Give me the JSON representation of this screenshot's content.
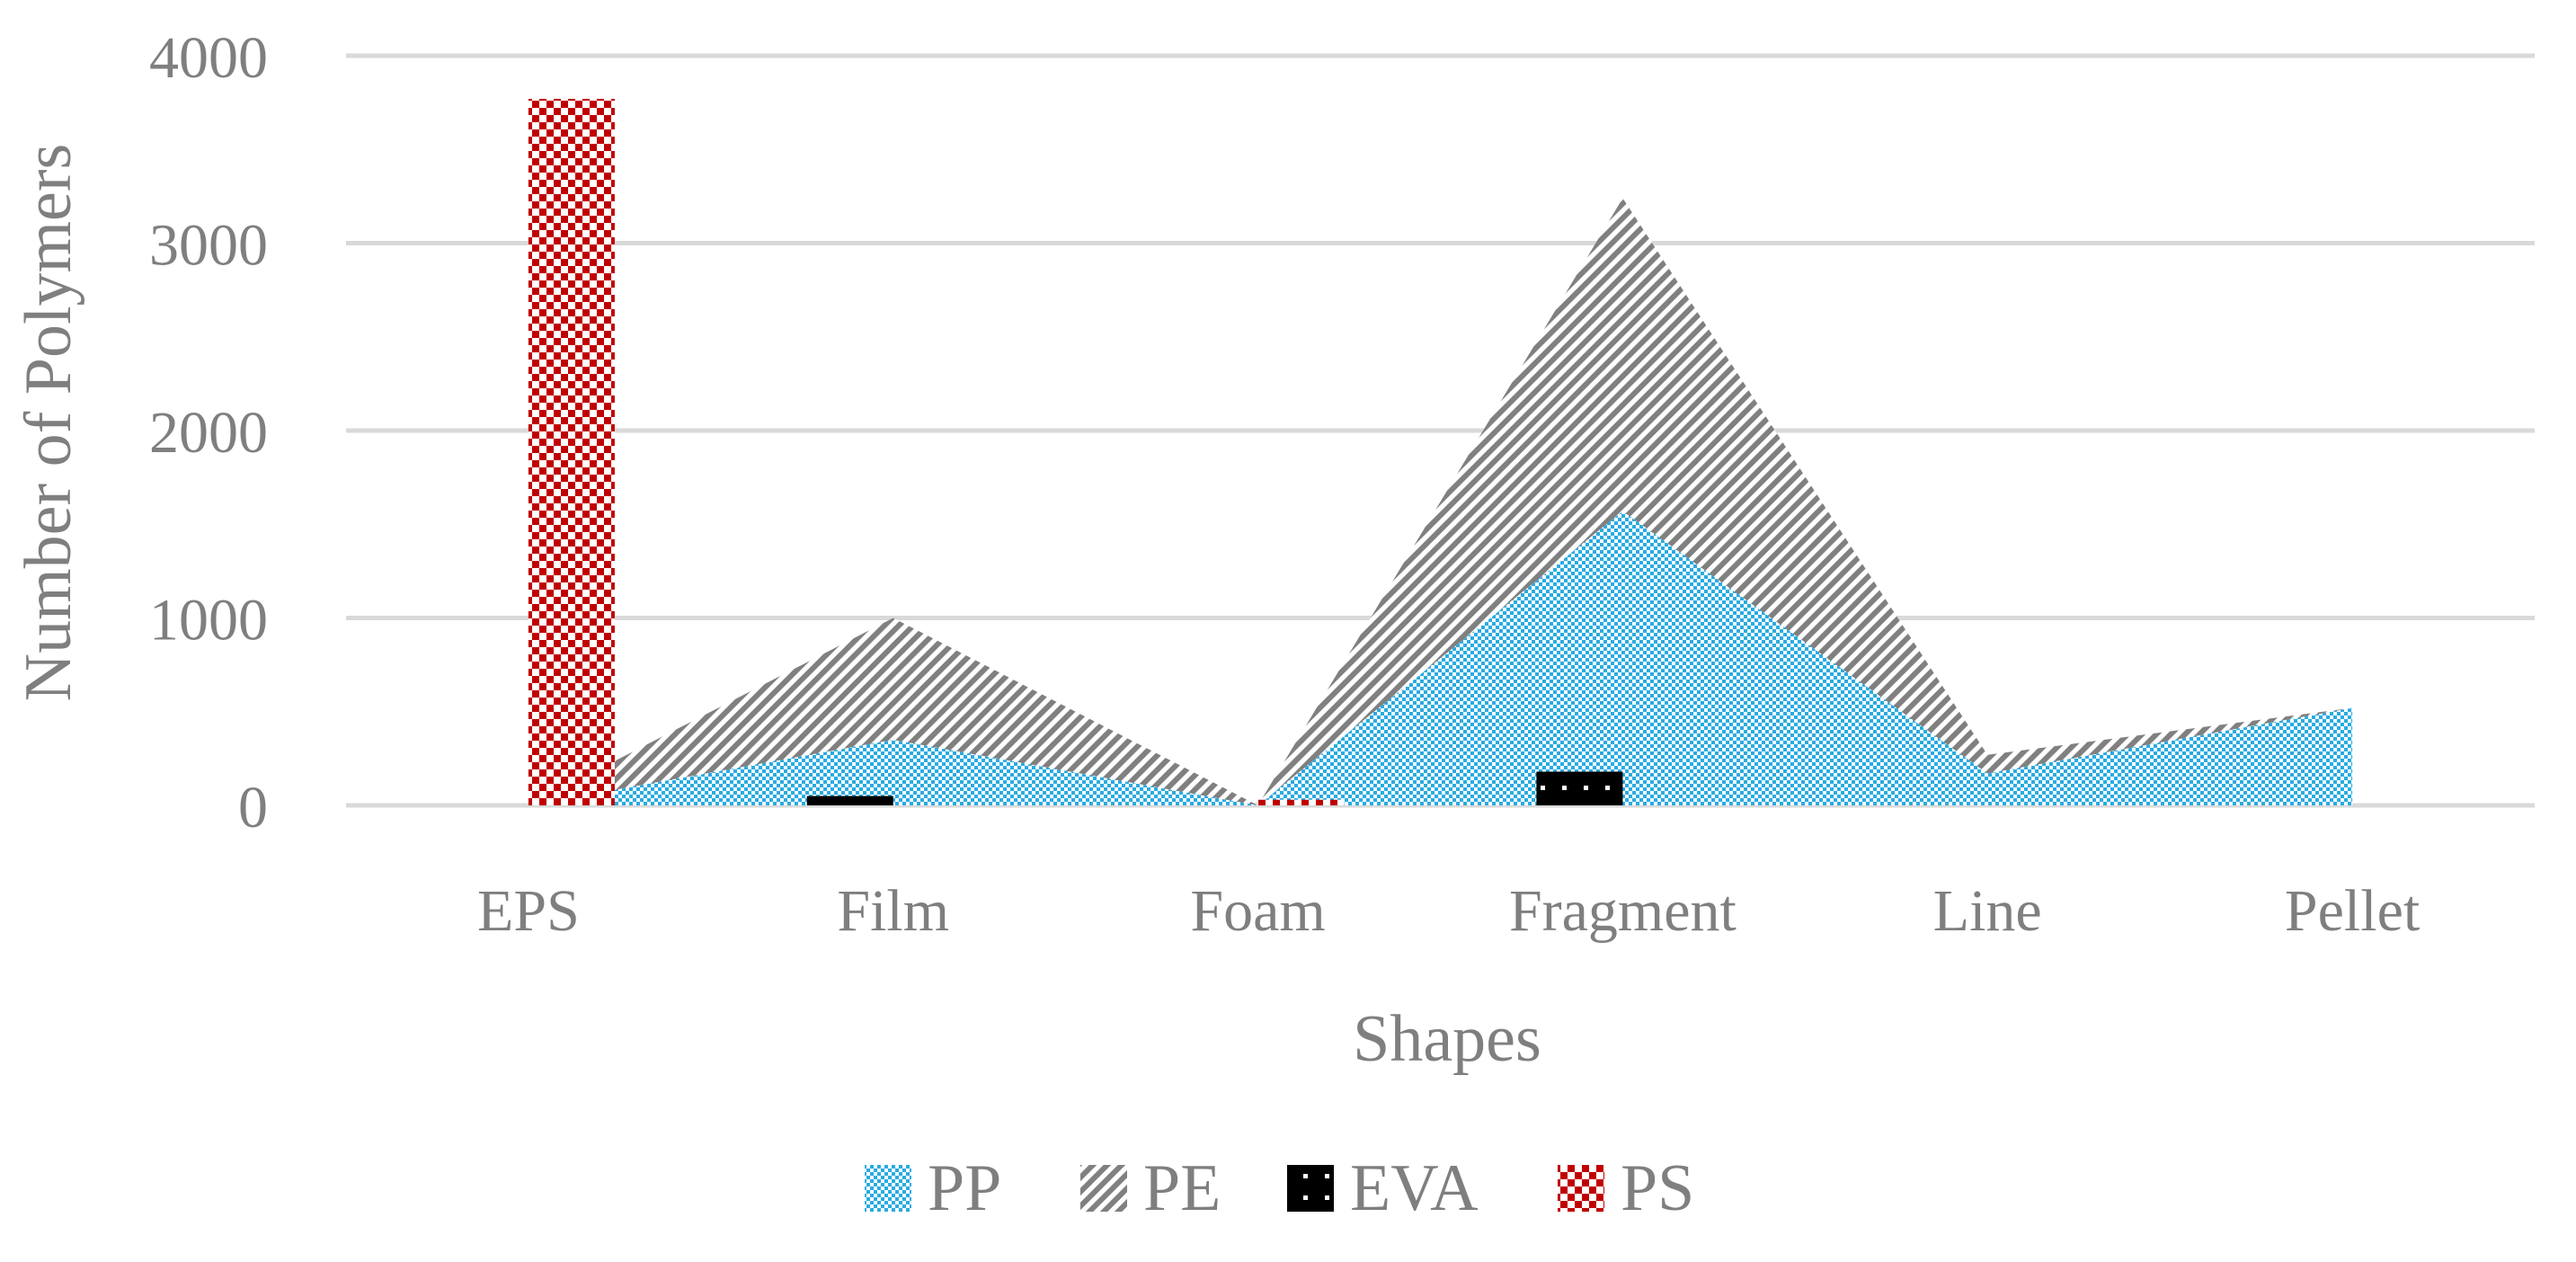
{
  "chart_data": {
    "type": "area",
    "xlabel": "Shapes",
    "ylabel": "Number of Polymers",
    "categories": [
      "EPS",
      "Film",
      "Foam",
      "Fragment",
      "Line",
      "Pellet"
    ],
    "ylim": [
      0,
      4000
    ],
    "yticks": [
      0,
      1000,
      2000,
      3000,
      4000
    ],
    "grid": true,
    "legend_position": "bottom",
    "stacked_areas": [
      {
        "name": "PP",
        "values": [
          0,
          350,
          0,
          1570,
          170,
          520
        ]
      },
      {
        "name": "PE",
        "values": [
          0,
          650,
          0,
          1670,
          100,
          0
        ]
      }
    ],
    "bars": [
      {
        "name": "EVA",
        "values": [
          0,
          50,
          0,
          180,
          0,
          0
        ]
      },
      {
        "name": "PS",
        "values": [
          3770,
          0,
          30,
          0,
          0,
          0
        ]
      }
    ],
    "legend": [
      "PP",
      "PE",
      "EVA",
      "PS"
    ],
    "colors": {
      "PP": "#29abe2",
      "PE": "#808080",
      "EVA": "#000000",
      "PS": "#c00000",
      "grid": "#d9d9d9",
      "text": "#7f7f7f"
    }
  }
}
